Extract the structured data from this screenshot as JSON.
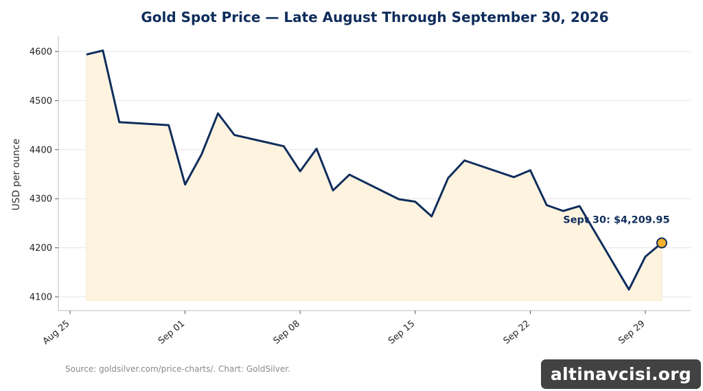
{
  "chart_data": {
    "type": "area",
    "title": "Gold Spot Price — Late August Through September 30, 2026",
    "ylabel": "USD per ounce",
    "xlabel": "",
    "ylim": [
      4070,
      4630
    ],
    "xlim": [
      "2026-08-24",
      "2026-09-30"
    ],
    "yticks": [
      4100,
      4200,
      4300,
      4400,
      4500,
      4600
    ],
    "ytick_labels": [
      "4100",
      "4200",
      "4300",
      "4400",
      "4500",
      "4600"
    ],
    "xticks": [
      "2026-08-25",
      "2026-09-01",
      "2026-09-08",
      "2026-09-15",
      "2026-09-22",
      "2026-09-29"
    ],
    "xtick_labels": [
      "Aug 25",
      "Sep 01",
      "Sep 08",
      "Sep 15",
      "Sep 22",
      "Sep 29"
    ],
    "grid": "horizontal",
    "line_color": "#0f2d5c",
    "fill_color": "#fdf3df",
    "marker_color": "#f2b02c",
    "series": [
      {
        "x": [
          "2026-08-26",
          "2026-08-27",
          "2026-08-28",
          "2026-08-31",
          "2026-09-01",
          "2026-09-02",
          "2026-09-03",
          "2026-09-04",
          "2026-09-07",
          "2026-09-08",
          "2026-09-09",
          "2026-09-10",
          "2026-09-11",
          "2026-09-14",
          "2026-09-15",
          "2026-09-16",
          "2026-09-17",
          "2026-09-18",
          "2026-09-21",
          "2026-09-22",
          "2026-09-23",
          "2026-09-24",
          "2026-09-25",
          "2026-09-28",
          "2026-09-29",
          "2026-09-30"
        ],
        "values": [
          4594,
          4602,
          4456,
          4450,
          4329,
          4390,
          4474,
          4430,
          4407,
          4356,
          4402,
          4317,
          4349,
          4299,
          4294,
          4264,
          4342,
          4378,
          4344,
          4358,
          4287,
          4275,
          4285,
          4115,
          4182,
          4209.95
        ]
      }
    ],
    "annotation": {
      "text": "Sept 30: $4,209.95",
      "x": "2026-09-30",
      "y": 4209.95
    },
    "source": "Source: goldsilver.com/price-charts/. Chart: GoldSilver."
  },
  "watermark": "altinavcisi.org"
}
